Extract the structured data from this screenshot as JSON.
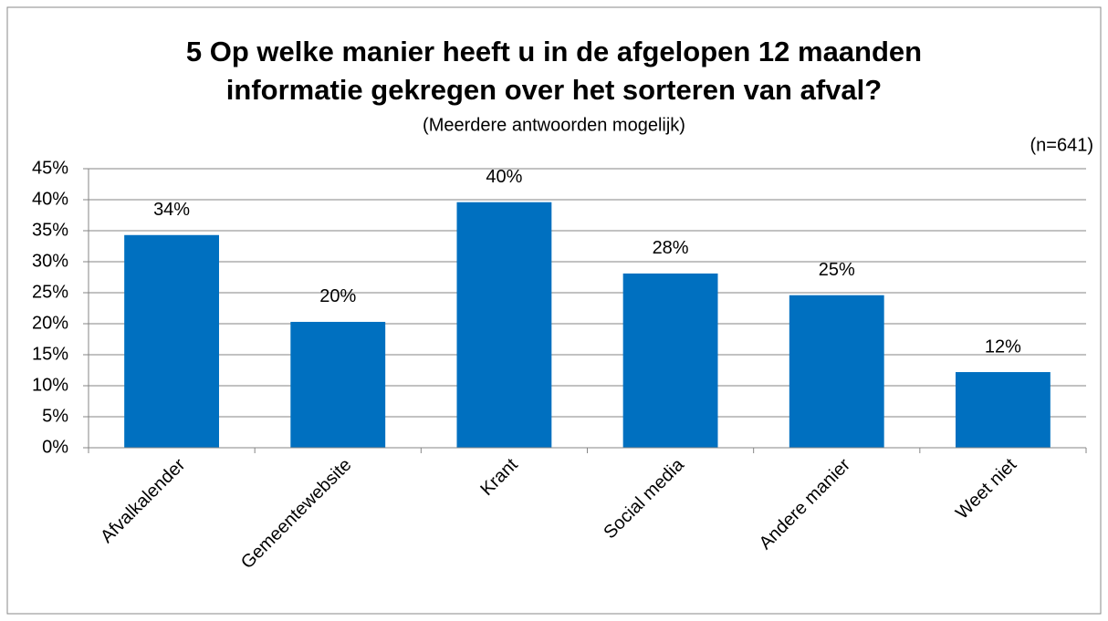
{
  "chart_data": {
    "type": "bar",
    "title": "5 Op welke manier heeft u in de afgelopen 12 maanden informatie gekregen over het sorteren van afval?",
    "subtitle": "(Meerdere antwoorden mogelijk)",
    "annotation": "(n=641)",
    "categories": [
      "Afvalkalender",
      "Gemeentewebsite",
      "Krant",
      "Social media",
      "Andere manier",
      "Weet niet"
    ],
    "values": [
      34.3,
      20.3,
      39.6,
      28.1,
      24.6,
      12.2
    ],
    "value_labels": [
      "34%",
      "20%",
      "40%",
      "28%",
      "25%",
      "12%"
    ],
    "color": "#0070c0",
    "ylim": [
      0,
      45
    ],
    "yticks": [
      {
        "value": 0,
        "label": "0%"
      },
      {
        "value": 5,
        "label": "5%"
      },
      {
        "value": 10,
        "label": "10%"
      },
      {
        "value": 15,
        "label": "15%"
      },
      {
        "value": 20,
        "label": "20%"
      },
      {
        "value": 25,
        "label": "25%"
      },
      {
        "value": 30,
        "label": "30%"
      },
      {
        "value": 35,
        "label": "35%"
      },
      {
        "value": 40,
        "label": "40%"
      },
      {
        "value": 45,
        "label": "45%"
      }
    ],
    "grid": true
  }
}
